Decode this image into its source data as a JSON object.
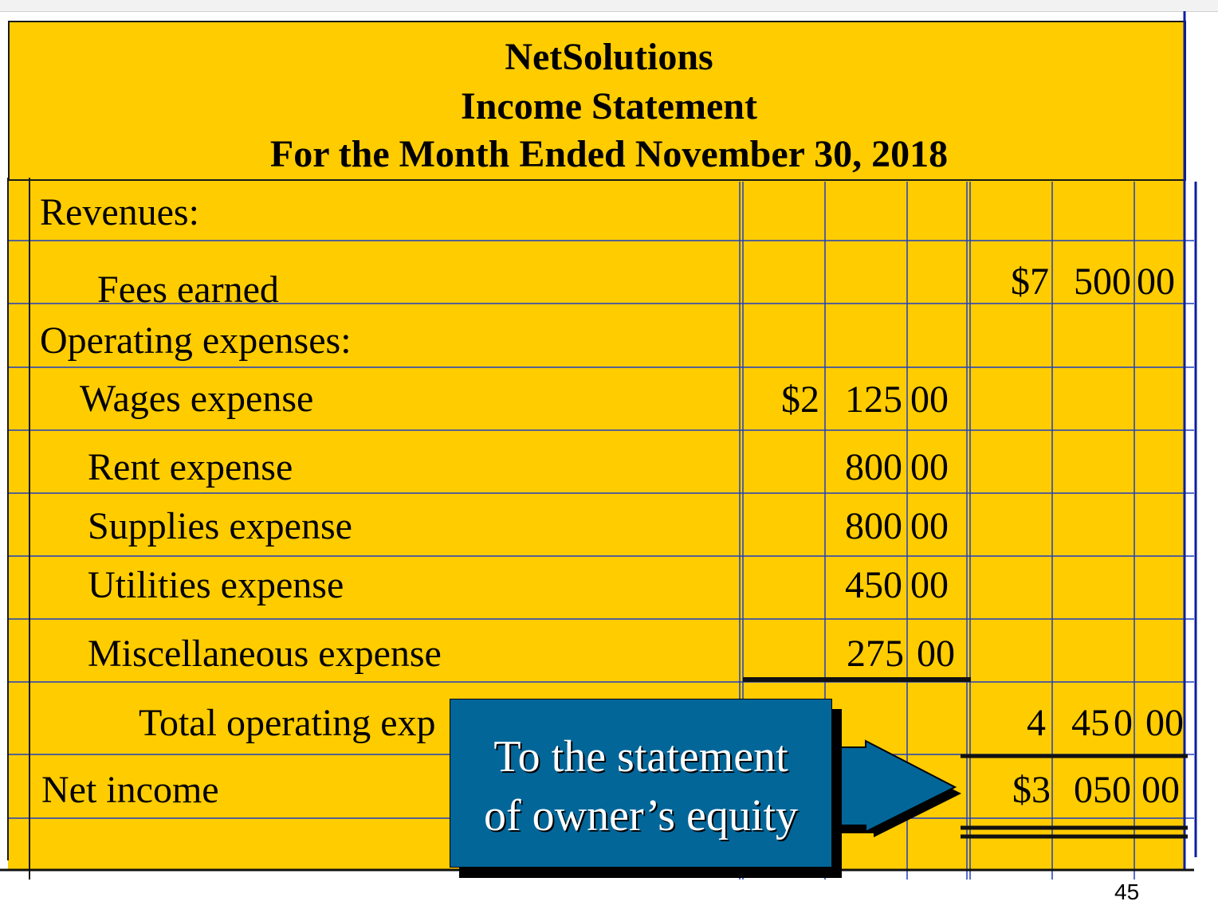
{
  "statement": {
    "company": "NetSolutions",
    "title": "Income Statement",
    "period": "For the Month Ended November 30, 2018"
  },
  "rows": {
    "revenues": "Revenues:",
    "fees_earned": {
      "label": "Fees earned",
      "dollar": "$7",
      "hundreds": "500",
      "cents": "00"
    },
    "operating_expenses": "Operating expenses:",
    "wages": {
      "label": "Wages expense",
      "dollar": "$2",
      "hundreds": "125",
      "cents": "00"
    },
    "rent": {
      "label": "Rent expense",
      "hundreds": "800",
      "cents": "00"
    },
    "supplies": {
      "label": "Supplies expense",
      "hundreds": "800",
      "cents": "00"
    },
    "utilities": {
      "label": "Utilities expense",
      "hundreds": "450",
      "cents": "00"
    },
    "misc": {
      "label": "Miscellaneous expense",
      "hundreds": "275",
      "cents": "00"
    },
    "total_operating": {
      "label": "Total operating exp",
      "thousands": "4",
      "hundreds": "45",
      "tail": "0",
      "cents": "00"
    },
    "net_income": {
      "label": "Net income",
      "dollar": "$3",
      "hundreds": "050",
      "cents": "00"
    }
  },
  "callout": {
    "line1": "To the statement",
    "line2": "of owner’s equity"
  },
  "page_number": "45",
  "colors": {
    "sheet": "#ffcc00",
    "grid": "#1f3fbf",
    "callout": "#036699"
  }
}
